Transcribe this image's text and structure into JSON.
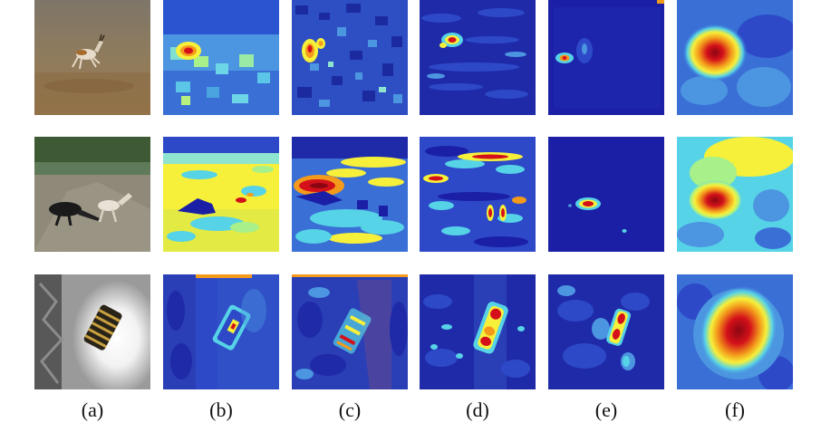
{
  "figure": {
    "rows": [
      "gazelle",
      "anteater-and-dog",
      "bright-object"
    ],
    "captions": [
      "(a)",
      "(b)",
      "(c)",
      "(d)",
      "(e)",
      "(f)"
    ],
    "colormap": "jet",
    "colors": {
      "deep_blue": "#1a1fa6",
      "blue": "#2d49c8",
      "cyan": "#56d3e6",
      "yellow": "#f6f03a",
      "orange": "#f39a1b",
      "red": "#d4111a",
      "dark_red": "#8b0612"
    }
  }
}
